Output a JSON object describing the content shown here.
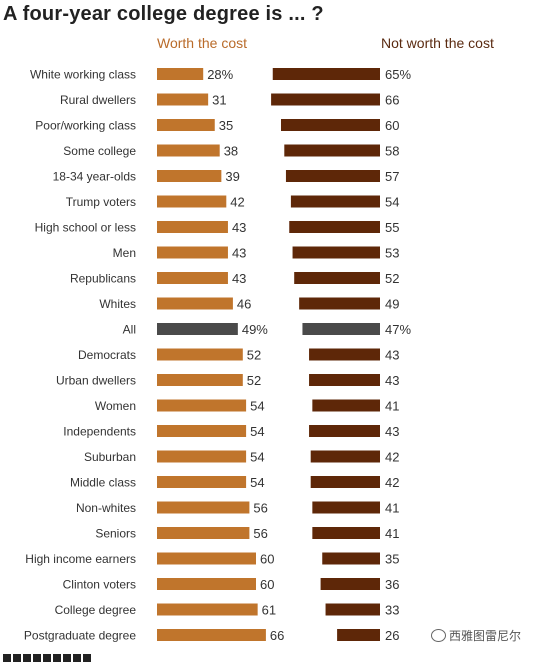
{
  "title": "A four-year college degree is ... ?",
  "legend": {
    "worth": "Worth the cost",
    "not_worth": "Not worth the cost"
  },
  "colors": {
    "worth": "#c0752c",
    "not_worth": "#5e2708",
    "all_bar": "#4a4a4a"
  },
  "watermark": "西雅图雷尼尔",
  "chart_data": {
    "type": "bar",
    "categories": [
      "White working class",
      "Rural dwellers",
      "Poor/working class",
      "Some college",
      "18-34 year-olds",
      "Trump voters",
      "High school or less",
      "Men",
      "Republicans",
      "Whites",
      "All",
      "Democrats",
      "Urban dwellers",
      "Women",
      "Independents",
      "Suburban",
      "Middle class",
      "Non-whites",
      "Seniors",
      "High income earners",
      "Clinton voters",
      "College degree",
      "Postgraduate degree"
    ],
    "series": [
      {
        "name": "Worth the cost",
        "values": [
          28,
          31,
          35,
          38,
          39,
          42,
          43,
          43,
          43,
          46,
          49,
          52,
          52,
          54,
          54,
          54,
          54,
          56,
          56,
          60,
          60,
          61,
          66
        ],
        "labels": [
          "28%",
          "31",
          "35",
          "38",
          "39",
          "42",
          "43",
          "43",
          "43",
          "46",
          "49%",
          "52",
          "52",
          "54",
          "54",
          "54",
          "54",
          "56",
          "56",
          "60",
          "60",
          "61",
          "66"
        ]
      },
      {
        "name": "Not worth the cost",
        "values": [
          65,
          66,
          60,
          58,
          57,
          54,
          55,
          53,
          52,
          49,
          47,
          43,
          43,
          41,
          43,
          42,
          42,
          41,
          41,
          35,
          36,
          33,
          26
        ],
        "labels": [
          "65%",
          "66",
          "60",
          "58",
          "57",
          "54",
          "55",
          "53",
          "52",
          "49",
          "47%",
          "43",
          "43",
          "41",
          "43",
          "42",
          "42",
          "41",
          "41",
          "35",
          "36",
          "33",
          "26"
        ]
      }
    ],
    "highlight_category": "All",
    "unit": "%"
  }
}
